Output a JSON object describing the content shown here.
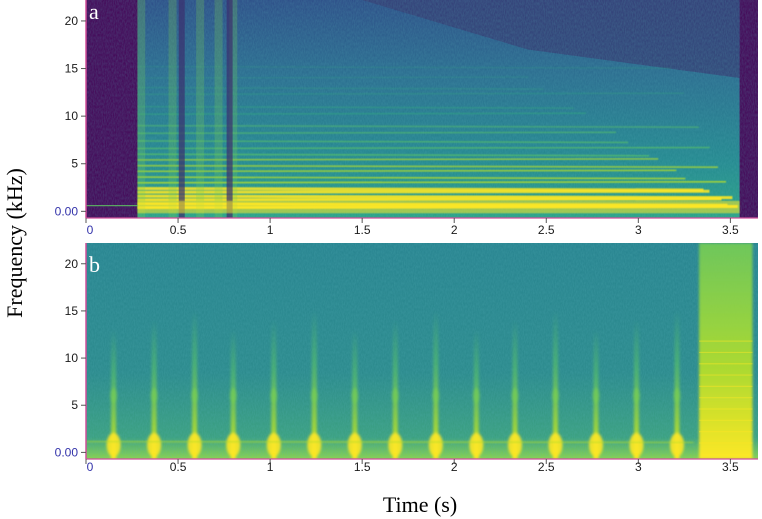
{
  "chart_data": [
    {
      "type": "heatmap",
      "panel_label": "a",
      "x_ticks": [
        "0",
        "0.5",
        "1",
        "1.5",
        "2",
        "2.5",
        "3",
        "3.5"
      ],
      "x_tick_values": [
        0,
        0.5,
        1,
        1.5,
        2,
        2.5,
        3,
        3.5
      ],
      "y_ticks": [
        "0.00",
        "5",
        "10",
        "15",
        "20"
      ],
      "y_tick_values": [
        0,
        5,
        10,
        15,
        20
      ],
      "xlim": [
        0,
        3.65
      ],
      "ylim": [
        -0.7,
        22.2
      ],
      "onset_s": 0.28,
      "offset_s": 3.55,
      "harmonics_khz": [
        0.4,
        0.8,
        1.2,
        1.6,
        2.0,
        2.4,
        3.0,
        3.6,
        4.2,
        4.8,
        5.4,
        6.0,
        6.6,
        7.4,
        8.2,
        9.0,
        10.2,
        11.0,
        12.3,
        13.0,
        14.0,
        15.2
      ],
      "colormap": [
        "#440154",
        "#3b528b",
        "#21918c",
        "#5ec962",
        "#fde725"
      ]
    },
    {
      "type": "heatmap",
      "panel_label": "b",
      "x_ticks": [
        "0",
        "0.5",
        "1",
        "1.5",
        "2",
        "2.5",
        "3",
        "3.5"
      ],
      "x_tick_values": [
        0,
        0.5,
        1,
        1.5,
        2,
        2.5,
        3,
        3.5
      ],
      "y_ticks": [
        "0.00",
        "5",
        "10",
        "15",
        "20"
      ],
      "y_tick_values": [
        0,
        5,
        10,
        15,
        20
      ],
      "xlim": [
        0,
        3.65
      ],
      "ylim": [
        -0.7,
        22.2
      ],
      "pulse_times_s": [
        0.15,
        0.37,
        0.59,
        0.8,
        1.02,
        1.24,
        1.46,
        1.68,
        1.9,
        2.12,
        2.33,
        2.55,
        2.77,
        2.99,
        3.21
      ],
      "burst_s": [
        3.33,
        3.62
      ],
      "colormap": [
        "#440154",
        "#3b528b",
        "#21918c",
        "#5ec962",
        "#fde725"
      ]
    }
  ],
  "axes": {
    "ylabel": "Frequency (kHz)",
    "xlabel": "Time (s)"
  }
}
